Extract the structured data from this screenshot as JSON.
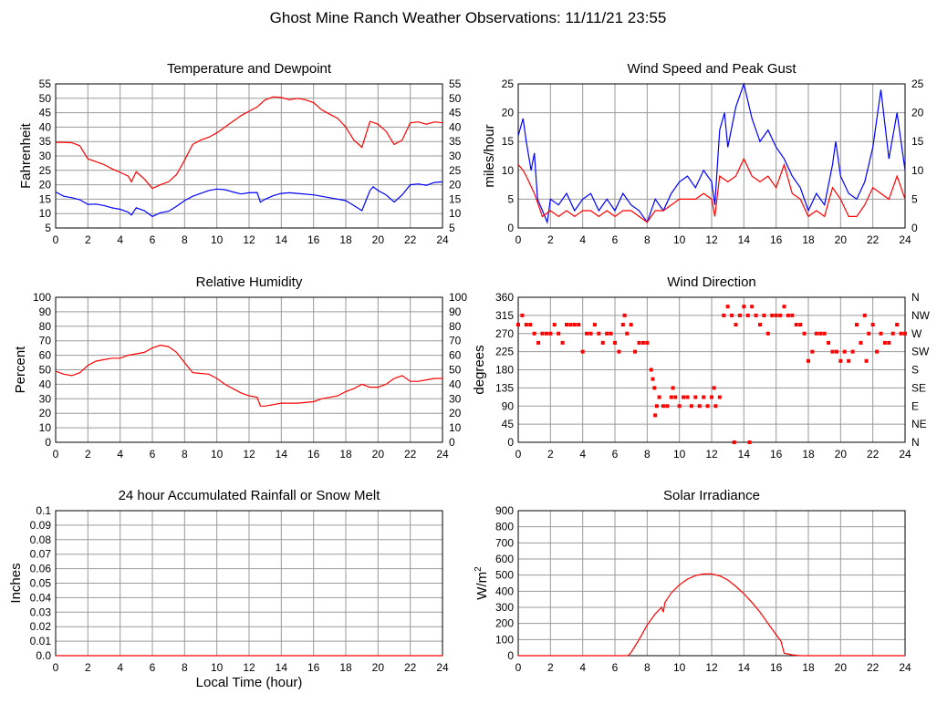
{
  "title": "Ghost Mine Ranch Weather Observations: 11/11/21 23:55",
  "xlabel": "Local Time (hour)",
  "colors": {
    "red": "#ff0000",
    "blue": "#0000ff",
    "grid": "#9a9a9a"
  },
  "chart_data": [
    {
      "type": "line",
      "title": "Temperature and Dewpoint",
      "ylabel": "Fahrenheit",
      "xlim": [
        0,
        24
      ],
      "xticks": [
        0,
        2,
        4,
        6,
        8,
        10,
        12,
        14,
        16,
        18,
        20,
        22,
        24
      ],
      "ylim": [
        5,
        55
      ],
      "yticks": [
        5,
        10,
        15,
        20,
        25,
        30,
        35,
        40,
        45,
        50,
        55
      ],
      "right_ticks": [
        "5",
        "10",
        "15",
        "20",
        "25",
        "30",
        "35",
        "40",
        "45",
        "50",
        "55"
      ],
      "series": [
        {
          "name": "Temperature",
          "color": "#ff0000",
          "x": [
            0,
            0.5,
            1,
            1.5,
            2,
            2.5,
            3,
            3.5,
            4,
            4.5,
            4.7,
            5,
            5.5,
            6,
            6.5,
            7,
            7.5,
            8,
            8.5,
            9,
            9.5,
            10,
            10.5,
            11,
            11.5,
            12,
            12.5,
            13,
            13.5,
            14,
            14.5,
            15,
            15.5,
            16,
            16.5,
            17,
            17.5,
            18,
            18.5,
            19,
            19.5,
            20,
            20.5,
            21,
            21.5,
            22,
            22.5,
            23,
            23.5,
            24
          ],
          "y": [
            34.7,
            34.7,
            34.6,
            33.5,
            29,
            28,
            27,
            25.5,
            24.3,
            23,
            21,
            24.5,
            22,
            18.7,
            20,
            21,
            23.5,
            28.5,
            34,
            35.5,
            36.5,
            38,
            40,
            42,
            44,
            45.5,
            47,
            49.5,
            50.5,
            50.3,
            49.5,
            50,
            49.5,
            48.5,
            46,
            44.5,
            43,
            40,
            35.5,
            33,
            42,
            41,
            38.5,
            34,
            35.5,
            41.5,
            41.8,
            41,
            41.8,
            41.5
          ]
        },
        {
          "name": "Dewpoint",
          "color": "#0000ff",
          "x": [
            0,
            0.5,
            1,
            1.5,
            2,
            2.5,
            3,
            3.5,
            4,
            4.5,
            4.7,
            5,
            5.5,
            6,
            6.5,
            7,
            7.5,
            8,
            8.5,
            9,
            9.5,
            10,
            10.5,
            11,
            11.5,
            12,
            12.5,
            12.7,
            13,
            13.5,
            14,
            14.5,
            15,
            16,
            17,
            18,
            18.5,
            19,
            19.5,
            19.7,
            20,
            20.5,
            21,
            21.5,
            22,
            22.5,
            23,
            23.5,
            24
          ],
          "y": [
            17.5,
            16,
            15.5,
            14.8,
            13.2,
            13.3,
            12.8,
            12,
            11.5,
            10.5,
            9.5,
            12,
            11,
            9,
            10.3,
            10.8,
            12.5,
            14.5,
            16,
            17,
            18,
            18.5,
            18.3,
            17.5,
            16.8,
            17.2,
            17.3,
            14,
            15,
            16.2,
            17,
            17.2,
            17,
            16.5,
            15.5,
            14.5,
            12.8,
            11,
            18,
            19.3,
            18,
            16.5,
            14,
            16.5,
            20,
            20.3,
            19.8,
            20.8,
            21
          ]
        }
      ]
    },
    {
      "type": "line",
      "title": "Wind Speed and Peak Gust",
      "ylabel": "miles/hour",
      "xlim": [
        0,
        24
      ],
      "xticks": [
        0,
        2,
        4,
        6,
        8,
        10,
        12,
        14,
        16,
        18,
        20,
        22,
        24
      ],
      "ylim": [
        0,
        25
      ],
      "yticks": [
        0,
        5,
        10,
        15,
        20,
        25
      ],
      "right_ticks": [
        "0",
        "5",
        "10",
        "15",
        "20",
        "25"
      ],
      "series": [
        {
          "name": "Peak Gust",
          "color": "#0000ff",
          "x": [
            0,
            0.3,
            0.5,
            0.8,
            1,
            1.2,
            1.5,
            1.8,
            2,
            2.5,
            3,
            3.5,
            4,
            4.5,
            5,
            5.5,
            6,
            6.5,
            7,
            7.5,
            8,
            8.5,
            9,
            9.5,
            10,
            10.5,
            11,
            11.5,
            12,
            12.2,
            12.5,
            12.8,
            13,
            13.5,
            14,
            14.5,
            15,
            15.5,
            16,
            16.5,
            17,
            17.5,
            18,
            18.5,
            19,
            19.5,
            19.7,
            20,
            20.5,
            21,
            21.5,
            22,
            22.5,
            23,
            23.5,
            24
          ],
          "y": [
            16,
            19,
            15,
            10,
            13,
            5,
            3,
            1,
            5,
            4,
            6,
            3,
            5,
            6,
            3,
            5,
            3,
            6,
            4,
            3,
            1,
            5,
            3,
            6,
            8,
            9,
            7,
            10,
            8,
            4,
            17,
            20,
            14,
            21,
            25,
            19,
            15,
            17,
            14,
            12,
            9,
            7,
            3,
            6,
            4,
            11,
            15,
            9,
            6,
            5,
            8,
            14,
            24,
            12,
            20,
            10
          ]
        },
        {
          "name": "Wind Speed",
          "color": "#ff0000",
          "x": [
            0,
            0.3,
            0.5,
            1,
            1.5,
            2,
            2.5,
            3,
            3.5,
            4,
            4.5,
            5,
            5.5,
            6,
            6.5,
            7,
            7.5,
            8,
            8.5,
            9,
            9.5,
            10,
            10.5,
            11,
            11.5,
            12,
            12.2,
            12.5,
            13,
            13.5,
            14,
            14.5,
            15,
            15.5,
            16,
            16.5,
            17,
            17.5,
            18,
            18.5,
            19,
            19.5,
            20,
            20.5,
            21,
            21.5,
            22,
            22.5,
            23,
            23.5,
            24
          ],
          "y": [
            11,
            10,
            9,
            6,
            2,
            3,
            2,
            3,
            2,
            3,
            3,
            2,
            3,
            2,
            3,
            3,
            2,
            1,
            3,
            3,
            4,
            5,
            5,
            5,
            6,
            5,
            2,
            9,
            8,
            9,
            12,
            9,
            8,
            9,
            7,
            11,
            6,
            5,
            2,
            3,
            2,
            7,
            5,
            2,
            2,
            4,
            7,
            6,
            5,
            9,
            5
          ]
        }
      ]
    },
    {
      "type": "line",
      "title": "Relative Humidity",
      "ylabel": "Percent",
      "xlim": [
        0,
        24
      ],
      "xticks": [
        0,
        2,
        4,
        6,
        8,
        10,
        12,
        14,
        16,
        18,
        20,
        22,
        24
      ],
      "ylim": [
        0,
        100
      ],
      "yticks": [
        0,
        10,
        20,
        30,
        40,
        50,
        60,
        70,
        80,
        90,
        100
      ],
      "right_ticks": [
        "0",
        "10",
        "20",
        "30",
        "40",
        "50",
        "60",
        "70",
        "80",
        "90",
        "100"
      ],
      "series": [
        {
          "name": "Relative Humidity",
          "color": "#ff0000",
          "x": [
            0,
            0.5,
            1,
            1.5,
            2,
            2.5,
            3,
            3.5,
            4,
            4.5,
            5,
            5.5,
            6,
            6.5,
            7,
            7.5,
            8,
            8.5,
            9,
            9.5,
            10,
            10.5,
            11,
            11.5,
            12,
            12.5,
            12.7,
            13,
            13.5,
            14,
            15,
            16,
            16.5,
            17,
            17.5,
            18,
            18.5,
            19,
            19.5,
            20,
            20.5,
            21,
            21.5,
            22,
            22.5,
            23,
            23.5,
            24
          ],
          "y": [
            49,
            47,
            46,
            48,
            53,
            56,
            57,
            58,
            58,
            60,
            61,
            62,
            65,
            67,
            66,
            62,
            55,
            48,
            47.5,
            47,
            44,
            40,
            37,
            34,
            32,
            31,
            25,
            25,
            26,
            27,
            27,
            28,
            30,
            31,
            32,
            35,
            37,
            40,
            38,
            38,
            40,
            44,
            46,
            42,
            42,
            43,
            44,
            44
          ]
        }
      ]
    },
    {
      "type": "scatter",
      "title": "Wind Direction",
      "ylabel": "degrees",
      "xlim": [
        0,
        24
      ],
      "xticks": [
        0,
        2,
        4,
        6,
        8,
        10,
        12,
        14,
        16,
        18,
        20,
        22,
        24
      ],
      "ylim": [
        0,
        360
      ],
      "yticks": [
        0,
        45,
        90,
        135,
        180,
        225,
        270,
        315,
        360
      ],
      "right_ticks": [
        "N",
        "NE",
        "E",
        "SE",
        "S",
        "SW",
        "W",
        "NW",
        "N"
      ],
      "series": [
        {
          "name": "Wind Direction",
          "color": "#ff0000",
          "x": [
            0,
            0.25,
            0.5,
            0.75,
            1,
            1.25,
            1.5,
            1.75,
            2,
            2.25,
            2.5,
            2.75,
            3,
            3.25,
            3.5,
            3.75,
            4,
            4.25,
            4.5,
            4.75,
            5,
            5.25,
            5.5,
            5.75,
            6,
            6.25,
            6.5,
            6.6,
            6.75,
            7,
            7.25,
            7.5,
            7.75,
            8,
            8.25,
            8.35,
            8.45,
            8.5,
            8.6,
            8.75,
            9,
            9.25,
            9.5,
            9.6,
            9.75,
            10,
            10.25,
            10.5,
            10.75,
            11,
            11.25,
            11.5,
            11.75,
            12,
            12.15,
            12.25,
            12.5,
            12.75,
            13,
            13.25,
            13.4,
            13.5,
            13.75,
            14,
            14.25,
            14.35,
            14.5,
            14.75,
            15,
            15.25,
            15.5,
            15.75,
            16,
            16.25,
            16.5,
            16.75,
            17,
            17.25,
            17.5,
            17.75,
            18,
            18.25,
            18.5,
            18.75,
            19,
            19.25,
            19.5,
            19.75,
            20,
            20.25,
            20.5,
            20.75,
            21,
            21.25,
            21.5,
            21.6,
            21.75,
            22,
            22.25,
            22.5,
            22.75,
            23,
            23.25,
            23.5,
            23.75,
            24
          ],
          "y": [
            292,
            315,
            292,
            292,
            270,
            247,
            270,
            270,
            270,
            292,
            270,
            247,
            292,
            292,
            292,
            292,
            225,
            270,
            270,
            292,
            270,
            247,
            270,
            270,
            247,
            225,
            292,
            315,
            270,
            292,
            225,
            247,
            247,
            247,
            180,
            157,
            135,
            67,
            90,
            112,
            90,
            90,
            112,
            135,
            112,
            90,
            112,
            112,
            90,
            112,
            90,
            112,
            90,
            112,
            135,
            90,
            112,
            315,
            337,
            315,
            0,
            292,
            315,
            337,
            315,
            0,
            337,
            315,
            292,
            315,
            270,
            315,
            315,
            315,
            337,
            315,
            315,
            292,
            292,
            270,
            202,
            225,
            270,
            270,
            270,
            247,
            225,
            225,
            202,
            225,
            202,
            225,
            292,
            247,
            315,
            202,
            270,
            292,
            225,
            270,
            247,
            247,
            270,
            292,
            270,
            270
          ]
        }
      ]
    },
    {
      "type": "line",
      "title": "24 hour Accumulated Rainfall or Snow Melt",
      "ylabel": "Inches",
      "xlim": [
        0,
        24
      ],
      "xticks": [
        0,
        2,
        4,
        6,
        8,
        10,
        12,
        14,
        16,
        18,
        20,
        22,
        24
      ],
      "ylim": [
        0,
        0.1
      ],
      "yticks": [
        0,
        0.01,
        0.02,
        0.03,
        0.04,
        0.05,
        0.06,
        0.07,
        0.08,
        0.09,
        0.1
      ],
      "ytick_labels": [
        "0.0",
        "0.01",
        "0.02",
        "0.03",
        "0.04",
        "0.05",
        "0.06",
        "0.07",
        "0.08",
        "0.09",
        "0.1"
      ],
      "series": [
        {
          "name": "Rainfall",
          "color": "#ff0000",
          "x": [
            0,
            24
          ],
          "y": [
            0,
            0
          ]
        }
      ]
    },
    {
      "type": "line",
      "title": "Solar Irradiance",
      "ylabel": "W/m",
      "ylabel_sup": "2",
      "xlim": [
        0,
        24
      ],
      "xticks": [
        0,
        2,
        4,
        6,
        8,
        10,
        12,
        14,
        16,
        18,
        20,
        22,
        24
      ],
      "ylim": [
        0,
        900
      ],
      "yticks": [
        0,
        100,
        200,
        300,
        400,
        500,
        600,
        700,
        800,
        900
      ],
      "series": [
        {
          "name": "Solar Irradiance",
          "color": "#ff0000",
          "x": [
            0,
            6.8,
            7,
            7.5,
            8,
            8.5,
            8.9,
            9,
            9.1,
            9.5,
            10,
            10.5,
            11,
            11.5,
            12,
            12.5,
            13,
            13.5,
            14,
            14.5,
            15,
            15.5,
            16,
            16.3,
            16.5,
            17,
            17.5,
            24
          ],
          "y": [
            0,
            0,
            20,
            100,
            190,
            260,
            300,
            270,
            330,
            390,
            440,
            475,
            497,
            507,
            508,
            495,
            470,
            430,
            385,
            330,
            270,
            200,
            130,
            90,
            15,
            5,
            0,
            0
          ]
        }
      ]
    }
  ]
}
